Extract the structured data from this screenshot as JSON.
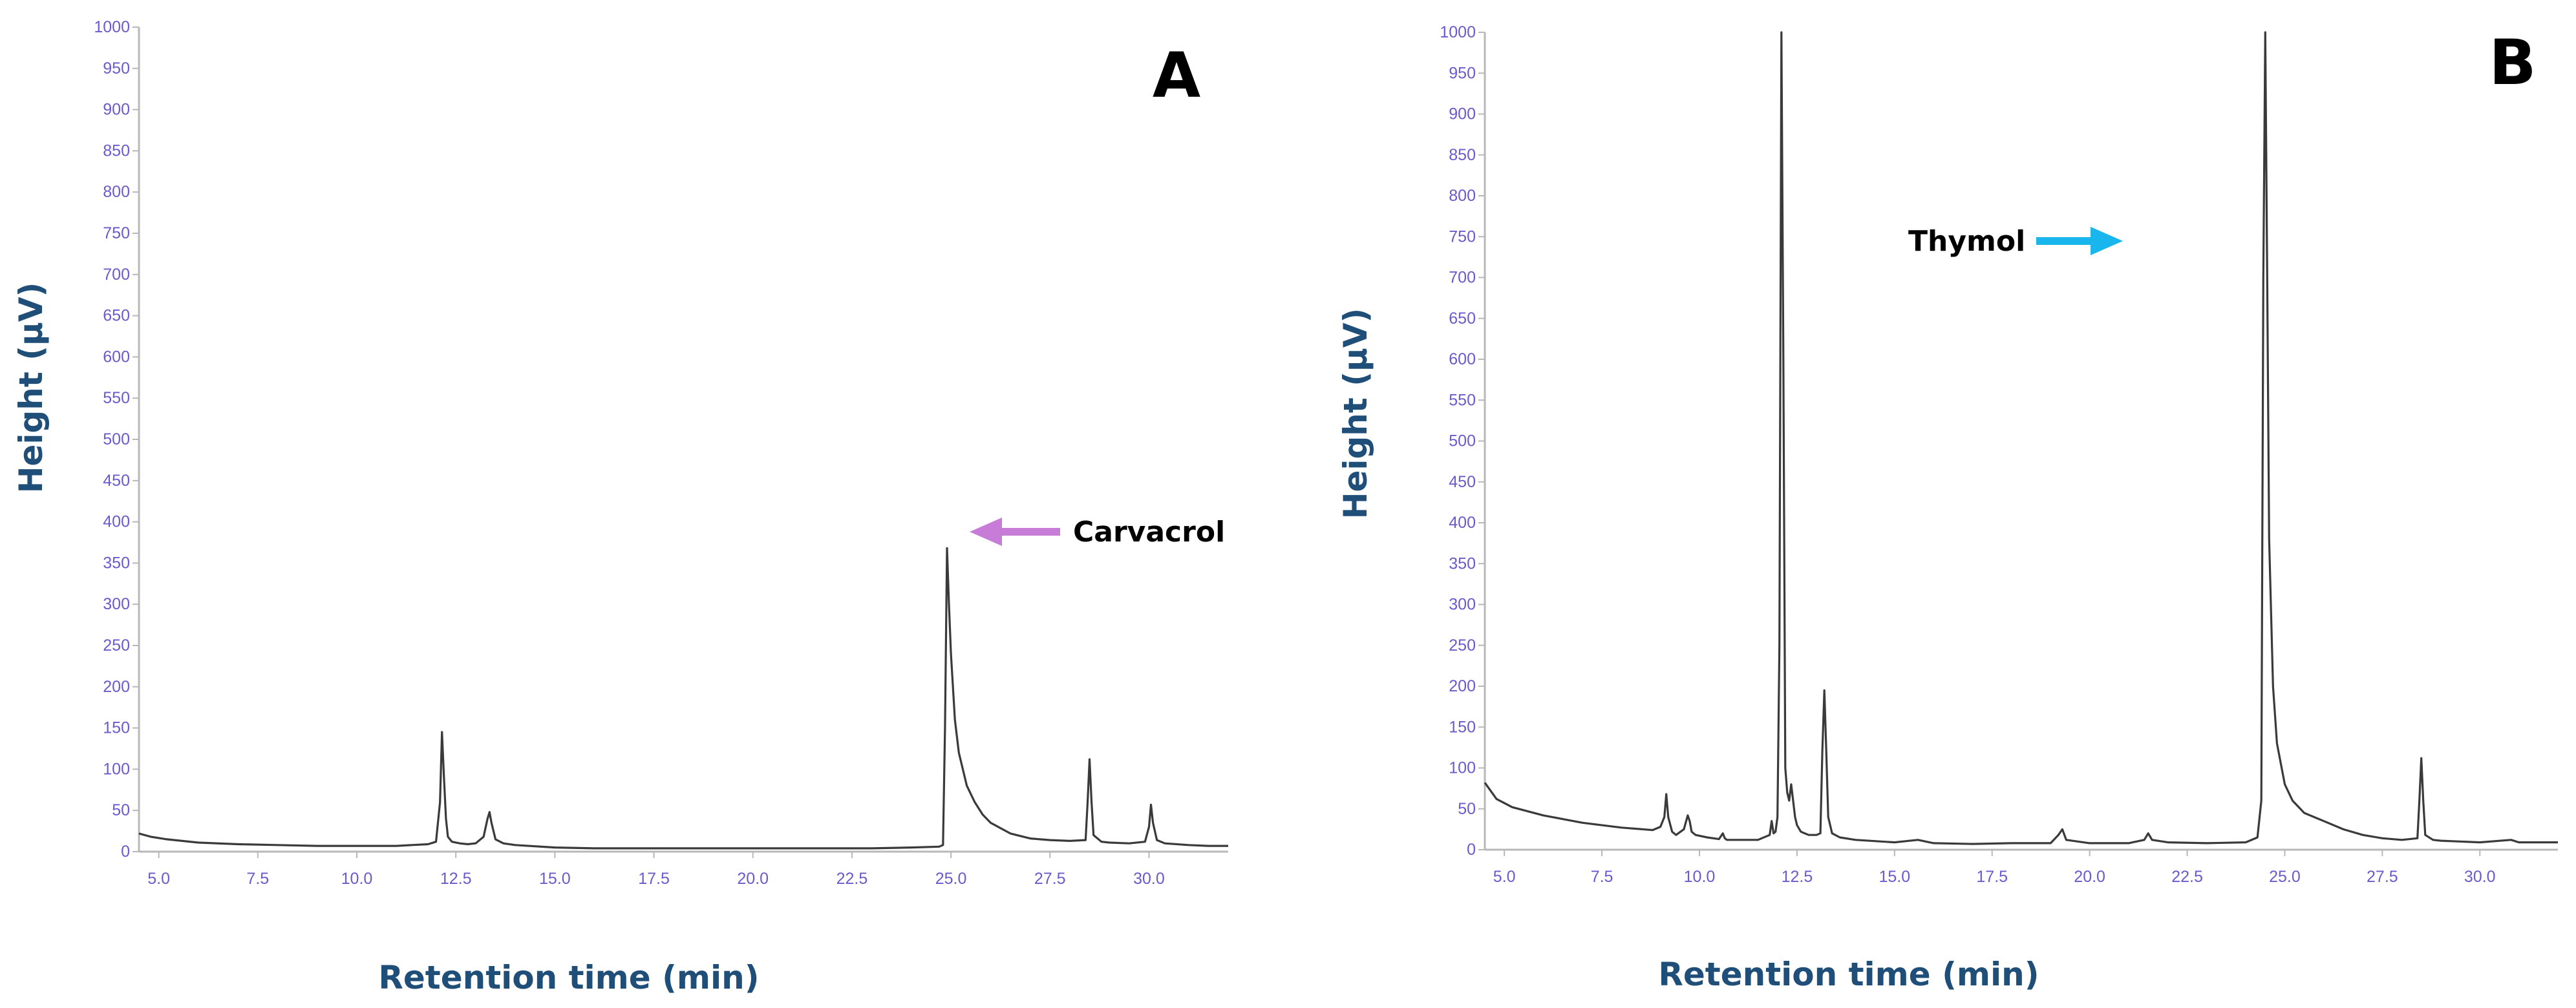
{
  "colors": {
    "trace": "#3a3a3a",
    "tick": "#6a5acd",
    "axis_title": "#1f4e79",
    "carvacrol_arrow": "#c77dd8",
    "thymol_arrow": "#19b6ee",
    "axis": "#b8b8b8"
  },
  "chart_data": [
    {
      "type": "line",
      "panel_label": "A",
      "xlabel": "Retention time (min)",
      "ylabel": "Height (µV)",
      "xlim": [
        4.5,
        32.0
      ],
      "ylim": [
        0,
        1000
      ],
      "x_ticks": [
        "5.0",
        "7.5",
        "10.0",
        "12.5",
        "15.0",
        "17.5",
        "20.0",
        "22.5",
        "25.0",
        "27.5",
        "30.0"
      ],
      "y_ticks": [
        "0",
        "50",
        "100",
        "150",
        "200",
        "250",
        "300",
        "350",
        "400",
        "450",
        "500",
        "550",
        "600",
        "650",
        "700",
        "750",
        "800",
        "850",
        "900",
        "950",
        "1000"
      ],
      "grid": false,
      "annotation": {
        "text": "Carvacrol",
        "arrow_direction": "left",
        "arrow_color": "#c77dd8"
      },
      "series": [
        {
          "x": [
            4.5,
            4.8,
            5.2,
            6.0,
            7.0,
            8.0,
            9.0,
            10.0,
            11.0,
            11.8,
            12.0,
            12.1,
            12.15,
            12.2,
            12.25,
            12.3,
            12.4,
            12.6,
            12.8,
            13.0,
            13.2,
            13.3,
            13.35,
            13.4,
            13.5,
            13.7,
            14.0,
            15.0,
            16.0,
            17.0,
            18.0,
            19.0,
            20.0,
            21.0,
            22.0,
            23.0,
            24.0,
            24.7,
            24.8,
            24.85,
            24.9,
            24.95,
            25.0,
            25.1,
            25.2,
            25.4,
            25.6,
            25.8,
            26.0,
            26.5,
            27.0,
            27.5,
            28.0,
            28.4,
            28.45,
            28.5,
            28.55,
            28.6,
            28.8,
            29.0,
            29.5,
            29.9,
            30.0,
            30.05,
            30.1,
            30.2,
            30.4,
            31.0,
            31.5,
            32.0
          ],
          "y": [
            22,
            18,
            15,
            11,
            9,
            8,
            7,
            7,
            7,
            9,
            12,
            60,
            145,
            90,
            40,
            18,
            12,
            10,
            9,
            10,
            18,
            40,
            48,
            35,
            15,
            10,
            8,
            5,
            4,
            4,
            4,
            4,
            4,
            4,
            4,
            4,
            5,
            6,
            8,
            150,
            368,
            300,
            240,
            160,
            120,
            80,
            60,
            45,
            35,
            22,
            16,
            14,
            13,
            14,
            60,
            112,
            60,
            20,
            12,
            11,
            10,
            12,
            30,
            57,
            35,
            14,
            10,
            8,
            7,
            7
          ]
        }
      ]
    },
    {
      "type": "line",
      "panel_label": "B",
      "xlabel": "Retention time (min)",
      "ylabel": "Height (µV)",
      "xlim": [
        4.5,
        32.0
      ],
      "ylim": [
        0,
        1000
      ],
      "x_ticks": [
        "5.0",
        "7.5",
        "10.0",
        "12.5",
        "15.0",
        "17.5",
        "20.0",
        "22.5",
        "25.0",
        "27.5",
        "30.0"
      ],
      "y_ticks": [
        "0",
        "50",
        "100",
        "150",
        "200",
        "250",
        "300",
        "350",
        "400",
        "450",
        "500",
        "550",
        "600",
        "650",
        "700",
        "750",
        "800",
        "850",
        "900",
        "950",
        "1000"
      ],
      "grid": false,
      "annotation": {
        "text": "Thymol",
        "arrow_direction": "right",
        "arrow_color": "#19b6ee"
      },
      "series": [
        {
          "x": [
            4.5,
            4.8,
            5.2,
            6.0,
            7.0,
            8.0,
            8.8,
            9.0,
            9.1,
            9.15,
            9.2,
            9.3,
            9.4,
            9.6,
            9.7,
            9.75,
            9.8,
            9.9,
            10.2,
            10.5,
            10.6,
            10.65,
            10.7,
            10.8,
            11.2,
            11.5,
            11.8,
            11.85,
            11.9,
            11.95,
            12.0,
            12.05,
            12.1,
            12.15,
            12.2,
            12.25,
            12.3,
            12.35,
            12.4,
            12.45,
            12.5,
            12.6,
            12.8,
            13.0,
            13.1,
            13.15,
            13.2,
            13.25,
            13.3,
            13.4,
            13.6,
            14.0,
            15.0,
            15.6,
            16.0,
            17.0,
            18.0,
            19.0,
            19.2,
            19.3,
            19.4,
            20.0,
            21.0,
            21.4,
            21.5,
            21.6,
            22.0,
            23.0,
            24.0,
            24.3,
            24.4,
            24.45,
            24.5,
            24.55,
            24.6,
            24.7,
            24.8,
            25.0,
            25.2,
            25.5,
            26.0,
            26.5,
            27.0,
            27.5,
            28.0,
            28.4,
            28.45,
            28.5,
            28.55,
            28.6,
            28.8,
            29.0,
            30.0,
            30.8,
            31.0,
            32.0
          ],
          "y": [
            82,
            62,
            52,
            42,
            33,
            27,
            24,
            28,
            40,
            68,
            40,
            22,
            18,
            25,
            42,
            35,
            22,
            18,
            15,
            13,
            20,
            14,
            12,
            12,
            12,
            12,
            18,
            35,
            20,
            22,
            40,
            250,
            1000,
            600,
            100,
            70,
            60,
            80,
            60,
            40,
            30,
            22,
            18,
            18,
            20,
            120,
            195,
            120,
            40,
            20,
            15,
            12,
            9,
            12,
            8,
            7,
            8,
            8,
            18,
            25,
            12,
            8,
            8,
            12,
            20,
            12,
            9,
            8,
            9,
            15,
            60,
            700,
            1000,
            700,
            380,
            200,
            130,
            80,
            60,
            45,
            35,
            25,
            18,
            14,
            12,
            14,
            60,
            112,
            60,
            18,
            12,
            11,
            9,
            12,
            9,
            9
          ]
        }
      ]
    }
  ]
}
